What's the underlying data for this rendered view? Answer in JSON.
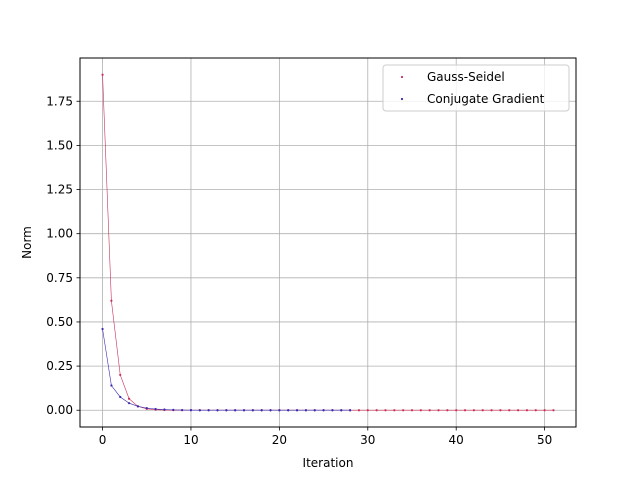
{
  "chart_data": {
    "type": "line",
    "xlabel": "Iteration",
    "ylabel": "Norm",
    "xlim": [
      -2.55,
      53.55
    ],
    "ylim": [
      -0.095,
      1.995
    ],
    "xticks": [
      0,
      10,
      20,
      30,
      40,
      50
    ],
    "yticks": [
      0.0,
      0.25,
      0.5,
      0.75,
      1.0,
      1.25,
      1.5,
      1.75
    ],
    "ytick_labels": [
      "0.00",
      "0.25",
      "0.50",
      "0.75",
      "1.00",
      "1.25",
      "1.50",
      "1.75"
    ],
    "grid": true,
    "legend_position": "top-right",
    "series": [
      {
        "name": "Gauss-Seidel",
        "color": "#c8305a",
        "x": [
          0,
          1,
          2,
          3,
          4,
          5,
          6,
          7,
          8,
          9,
          10,
          11,
          12,
          13,
          14,
          15,
          16,
          17,
          18,
          19,
          20,
          21,
          22,
          23,
          24,
          25,
          26,
          27,
          28,
          29,
          30,
          31,
          32,
          33,
          34,
          35,
          36,
          37,
          38,
          39,
          40,
          41,
          42,
          43,
          44,
          45,
          46,
          47,
          48,
          49,
          50,
          51
        ],
        "y": [
          1.9,
          0.62,
          0.2,
          0.065,
          0.022,
          0.008,
          0.003,
          0.001,
          0.0005,
          0.0002,
          0.0001,
          0,
          0,
          0,
          0,
          0,
          0,
          0,
          0,
          0,
          0,
          0,
          0,
          0,
          0,
          0,
          0,
          0,
          0,
          0,
          0,
          0,
          0,
          0,
          0,
          0,
          0,
          0,
          0,
          0,
          0,
          0,
          0,
          0,
          0,
          0,
          0,
          0,
          0,
          0,
          0,
          0
        ]
      },
      {
        "name": "Conjugate Gradient",
        "color": "#3a2cb0",
        "x": [
          0,
          1,
          2,
          3,
          4,
          5,
          6,
          7,
          8,
          9,
          10,
          11,
          12,
          13,
          14,
          15,
          16,
          17,
          18,
          19,
          20,
          21,
          22,
          23,
          24,
          25,
          26,
          27,
          28
        ],
        "y": [
          0.46,
          0.14,
          0.075,
          0.04,
          0.022,
          0.012,
          0.007,
          0.004,
          0.002,
          0.001,
          0.0005,
          0.0002,
          0.0001,
          0,
          0,
          0,
          0,
          0,
          0,
          0,
          0,
          0,
          0,
          0,
          0,
          0,
          0,
          0,
          0
        ]
      }
    ]
  }
}
